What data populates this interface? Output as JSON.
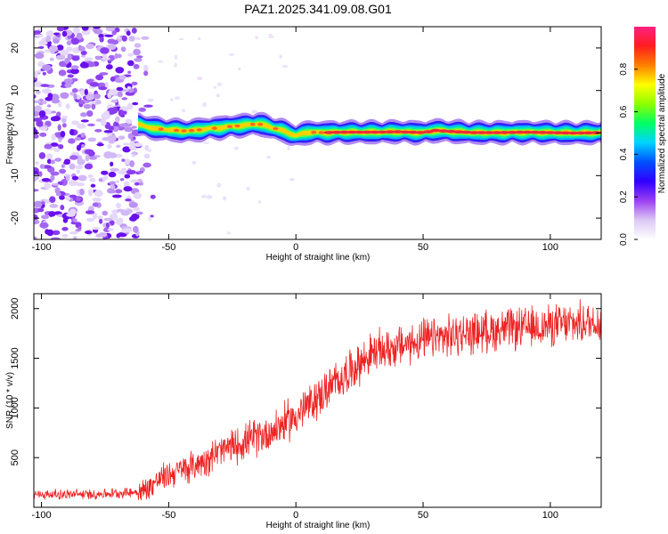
{
  "figure_title": "PAZ1.2025.341.09.08.G01",
  "chart_data": [
    {
      "type": "heatmap",
      "title": "PAZ1.2025.341.09.08.G01",
      "xlabel": "Height of straight line (km)",
      "ylabel": "Frequency (Hz)",
      "xlim": [
        -103,
        120
      ],
      "ylim": [
        -25,
        25
      ],
      "xticks": [
        -100,
        -50,
        0,
        50,
        100
      ],
      "yticks": [
        -20,
        -10,
        0,
        10,
        20
      ],
      "noise_region_x": [
        -103,
        -60
      ],
      "signal_track": {
        "x": [
          -62,
          -55,
          -50,
          -45,
          -40,
          -35,
          -30,
          -25,
          -20,
          -15,
          -10,
          -5,
          0,
          5,
          10,
          20,
          30,
          40,
          50,
          55,
          60,
          70,
          80,
          90,
          100,
          110,
          120
        ],
        "freq_hz": [
          2.0,
          1.0,
          0.8,
          0.5,
          0.6,
          1.0,
          1.2,
          1.6,
          1.8,
          2.2,
          1.4,
          0.5,
          -0.6,
          0.2,
          0.1,
          0.2,
          0.2,
          0.3,
          0.1,
          0.6,
          0.4,
          0.1,
          0.1,
          0.2,
          0.1,
          0.0,
          0.1
        ]
      },
      "colorbar": {
        "label": "Normalized spectral amplitude",
        "range": [
          0.0,
          1.0
        ],
        "ticks": [
          "0.0",
          "0.2",
          "0.4",
          "0.6",
          "0.8"
        ],
        "tick_values": [
          0.0,
          0.2,
          0.4,
          0.6,
          0.8
        ],
        "colors": [
          "#ffffff",
          "#dcc8f5",
          "#9b40f2",
          "#3000ff",
          "#0050ff",
          "#00d4ff",
          "#00ff64",
          "#8cff00",
          "#ffff00",
          "#ff8000",
          "#ff1e1e",
          "#ff2080"
        ]
      }
    },
    {
      "type": "line",
      "xlabel": "Height of straight line (km)",
      "ylabel": "SNR (10 * v/v)",
      "xlim": [
        -103,
        120
      ],
      "ylim": [
        0,
        2150
      ],
      "xticks": [
        -100,
        -50,
        0,
        50,
        100
      ],
      "yticks": [
        500,
        1000,
        1500,
        2000
      ],
      "color": "#ee2222",
      "trend": {
        "x": [
          -103,
          -80,
          -65,
          -60,
          -55,
          -50,
          -40,
          -30,
          -20,
          -10,
          0,
          10,
          20,
          30,
          40,
          50,
          60,
          70,
          80,
          90,
          100,
          110,
          120
        ],
        "y": [
          130,
          130,
          150,
          160,
          260,
          330,
          420,
          560,
          660,
          760,
          920,
          1130,
          1350,
          1550,
          1620,
          1680,
          1720,
          1760,
          1790,
          1800,
          1830,
          1850,
          1870
        ]
      },
      "noise_amplitude": [
        60,
        250
      ]
    }
  ]
}
